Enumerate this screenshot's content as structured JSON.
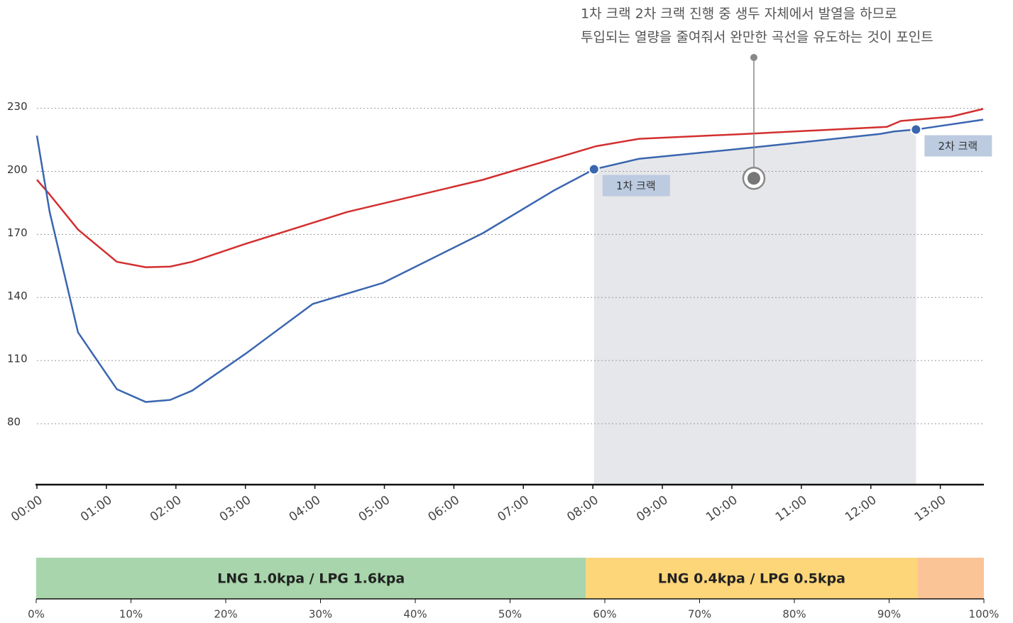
{
  "chart_data": [
    {
      "type": "line",
      "xlim": [
        0,
        817
      ],
      "ylim": [
        51,
        240
      ],
      "xticks": [
        {
          "value": 0,
          "label": "00:00"
        },
        {
          "value": 60,
          "label": "01:00"
        },
        {
          "value": 120,
          "label": "02:00"
        },
        {
          "value": 180,
          "label": "03:00"
        },
        {
          "value": 240,
          "label": "04:00"
        },
        {
          "value": 300,
          "label": "05:00"
        },
        {
          "value": 360,
          "label": "06:00"
        },
        {
          "value": 420,
          "label": "07:00"
        },
        {
          "value": 480,
          "label": "08:00"
        },
        {
          "value": 540,
          "label": "09:00"
        },
        {
          "value": 600,
          "label": "10:00"
        },
        {
          "value": 660,
          "label": "11:00"
        },
        {
          "value": 720,
          "label": "12:00"
        },
        {
          "value": 780,
          "label": "13:00"
        }
      ],
      "yticks": [
        80,
        110,
        140,
        170,
        200,
        230
      ],
      "grid": true,
      "series": [
        {
          "color": "#d32f2f",
          "x": [
            0,
            11,
            35.5,
            69,
            94,
            115,
            134,
            180,
            268,
            385,
            483,
            520,
            612,
            734,
            746,
            789,
            817
          ],
          "values": [
            196,
            189,
            172.3,
            157,
            154.4,
            154.7,
            157,
            165.5,
            180.7,
            196,
            212,
            215.5,
            217.8,
            221.2,
            224,
            226,
            229.7
          ]
        },
        {
          "color": "#3a66b0",
          "x": [
            0,
            11,
            35.5,
            69,
            94,
            115,
            134,
            180,
            238,
            299,
            385,
            446,
            481,
            520,
            612,
            728,
            740,
            759,
            817
          ],
          "values": [
            217,
            180.7,
            123.4,
            96.4,
            90.3,
            91.3,
            95.7,
            113.2,
            136.9,
            147,
            170.6,
            190.8,
            201,
            206,
            211,
            217.8,
            219,
            219.9,
            224.6
          ]
        }
      ],
      "annotations": [
        {
          "label": "1차 크랙",
          "x": 481,
          "y": 201
        },
        {
          "label": "2차 크랙",
          "x": 759,
          "y": 219.9
        }
      ],
      "callout": {
        "lines": [
          "1차 크랙 2차 크랙 진행 중 생두 자체에서 발열을 하므로",
          "투입되는 열량을 줄여줘서 완만한 곡선을 유도하는 것이 포인트"
        ],
        "x": 619,
        "y": 196.7
      }
    },
    {
      "type": "stacked_bar",
      "xlim": [
        0,
        100
      ],
      "xticks": [
        {
          "value": 0,
          "label": "0%"
        },
        {
          "value": 10,
          "label": "10%"
        },
        {
          "value": 20,
          "label": "20%"
        },
        {
          "value": 30,
          "label": "30%"
        },
        {
          "value": 40,
          "label": "40%"
        },
        {
          "value": 50,
          "label": "50%"
        },
        {
          "value": 60,
          "label": "60%"
        },
        {
          "value": 70,
          "label": "70%"
        },
        {
          "value": 80,
          "label": "80%"
        },
        {
          "value": 90,
          "label": "90%"
        },
        {
          "value": 100,
          "label": "100%"
        }
      ],
      "segments": [
        {
          "label": "LNG 1.0kpa / LPG 1.6kpa",
          "value": 58,
          "color": "#a8d5ab"
        },
        {
          "label": "LNG 0.4kpa / LPG 0.5kpa",
          "value": 35,
          "color": "#fdd67a"
        },
        {
          "value": 7,
          "color": "#fbc497"
        }
      ]
    }
  ]
}
